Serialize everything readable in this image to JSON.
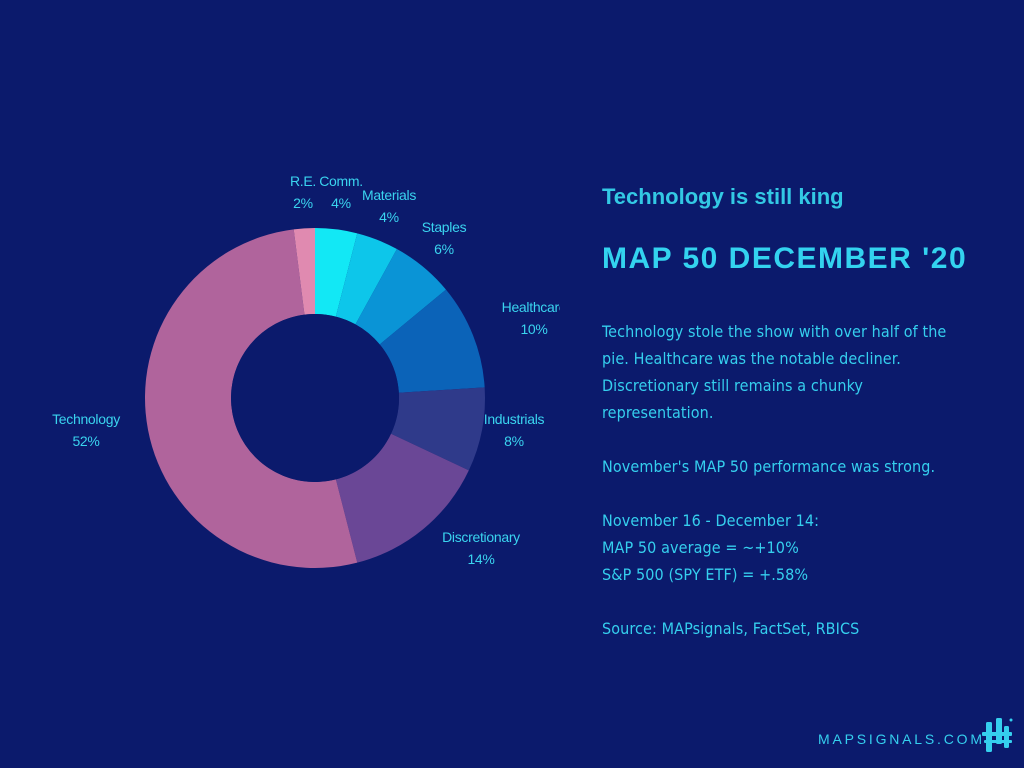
{
  "header": {
    "subtitle": "Technology is still king",
    "title": "MAP 50 DECEMBER '20"
  },
  "body": {
    "paragraph1": [
      "Technology stole the show with over half of the",
      "pie. Healthcare was the notable decliner.",
      "Discretionary still remains a chunky",
      "representation."
    ],
    "paragraph2": "November's MAP 50 performance was strong.",
    "paragraph3": [
      "November 16 - December 14:",
      "MAP 50 average  = ~+10%",
      "S&P 500 (SPY ETF) = +.58%"
    ],
    "source": "Source: MAPsignals, FactSet, RBICS"
  },
  "footer": {
    "site": "MAPSIGNALS.COM",
    "logo_icon": "mapsignals-logo-icon"
  },
  "colors": {
    "background": "#0b1a6c",
    "accent": "#33d3ef"
  },
  "chart_data": {
    "type": "donut",
    "start": "top",
    "direction": "clockwise",
    "slices": [
      {
        "name": "Comm.",
        "value": 4,
        "label": "4%",
        "color": "#12e8f5"
      },
      {
        "name": "Materials",
        "value": 4,
        "label": "4%",
        "color": "#0dc6ea"
      },
      {
        "name": "Staples",
        "value": 6,
        "label": "6%",
        "color": "#0a94d6"
      },
      {
        "name": "Healthcare",
        "value": 10,
        "label": "10%",
        "color": "#0b63b8"
      },
      {
        "name": "Industrials",
        "value": 8,
        "label": "8%",
        "color": "#2f3a8a"
      },
      {
        "name": "Discretionary",
        "value": 14,
        "label": "14%",
        "color": "#6a4796"
      },
      {
        "name": "Technology",
        "value": 52,
        "label": "52%",
        "color": "#b0649c"
      },
      {
        "name": "R.E.",
        "value": 2,
        "label": "2%",
        "color": "#e08ab0"
      }
    ]
  }
}
